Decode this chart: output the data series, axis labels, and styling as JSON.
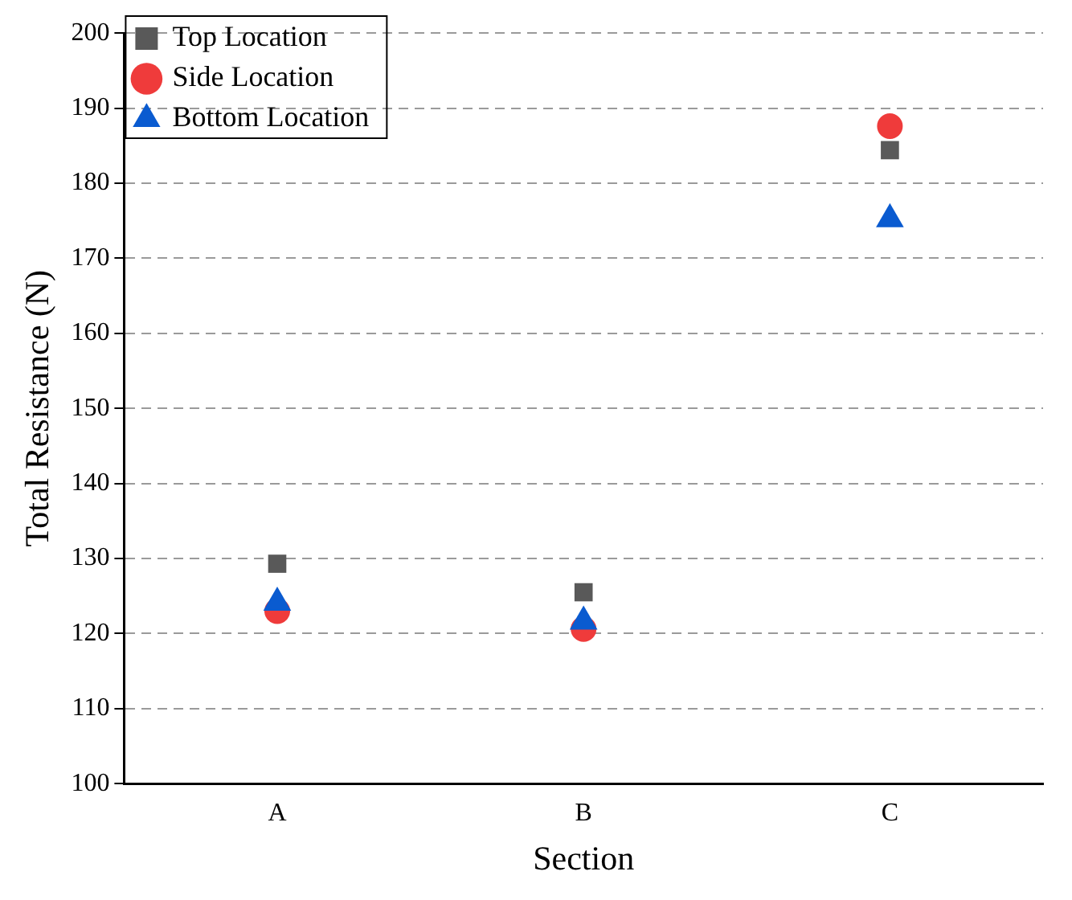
{
  "chart_data": {
    "type": "scatter",
    "xlabel": "Section",
    "ylabel": "Total Resistance (N)",
    "categories": [
      "A",
      "B",
      "C"
    ],
    "series": [
      {
        "name": "Top Location",
        "color": "#595959",
        "marker": "square",
        "values": [
          129.3,
          125.5,
          184.4
        ]
      },
      {
        "name": "Side Location",
        "color": "#ef3b3b",
        "marker": "circle",
        "values": [
          123.0,
          120.6,
          187.6
        ]
      },
      {
        "name": "Bottom Location",
        "color": "#0a5bd0",
        "marker": "triangle",
        "values": [
          124.1,
          121.6,
          175.2
        ]
      }
    ],
    "ylim": [
      100,
      200
    ],
    "yticks": [
      100,
      110,
      120,
      130,
      140,
      150,
      160,
      170,
      180,
      190,
      200
    ],
    "grid": "y",
    "legend": "top left"
  }
}
